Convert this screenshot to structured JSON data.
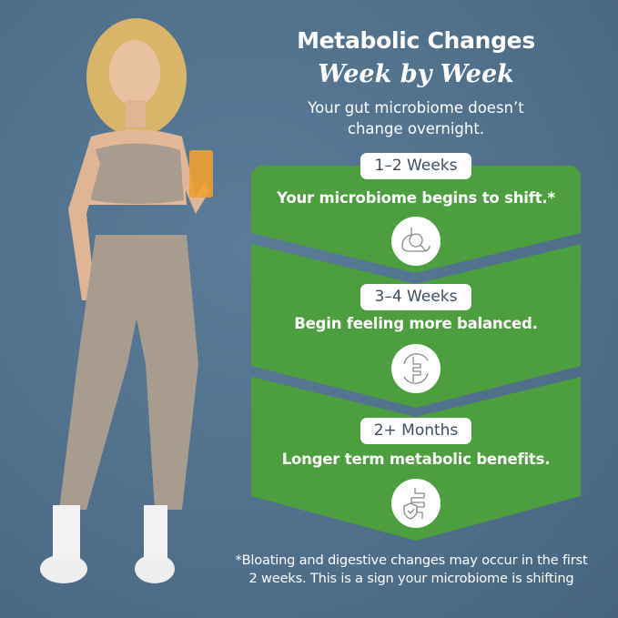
{
  "header": {
    "title": "Metabolic Changes",
    "subtitle": "Week by Week",
    "intro_line1": "Your gut microbiome doesn’t",
    "intro_line2": "change overnight."
  },
  "stages": [
    {
      "label": "1–2 Weeks",
      "text": "Your microbiome begins to shift.*",
      "icon": "gut-magnifier-icon"
    },
    {
      "label": "3–4 Weeks",
      "text": "Begin feeling more balanced.",
      "icon": "gut-cycle-icon"
    },
    {
      "label": "2+ Months",
      "text": "Longer term metabolic benefits.",
      "icon": "gut-shield-icon"
    }
  ],
  "footnote": {
    "line1": "*Bloating and digestive changes may occur in the first",
    "line2": "2 weeks. This is a sign your microbiome is shifting"
  },
  "colors": {
    "background": "#4f6f8a",
    "panel": "#4c9e3f",
    "pill_text": "#3e4f63",
    "outfit": "#a89c8f"
  }
}
